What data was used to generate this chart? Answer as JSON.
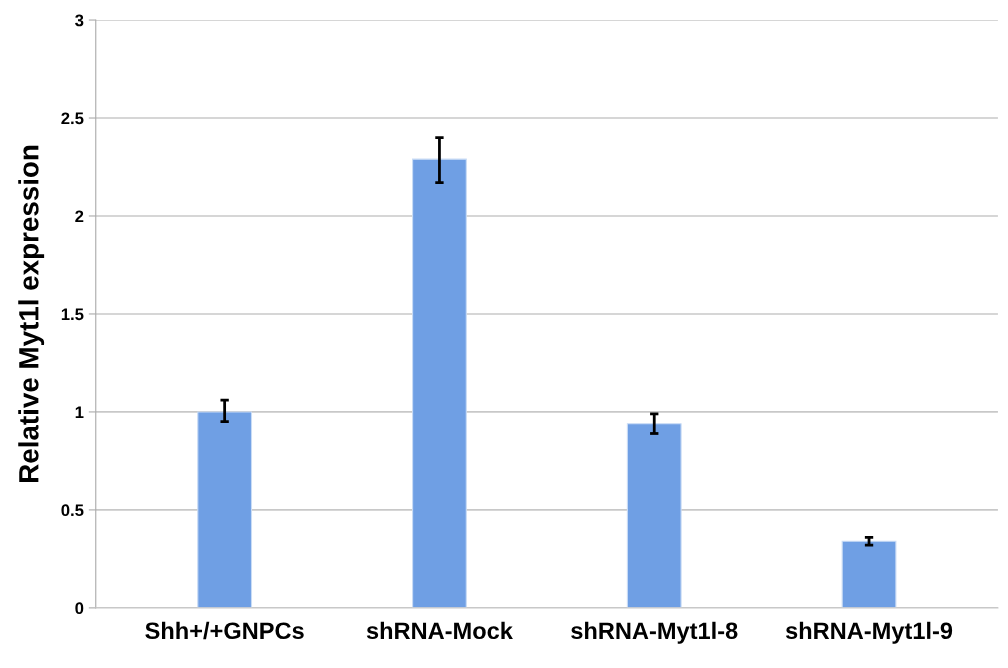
{
  "chart_data": {
    "type": "bar",
    "ylabel": "Relative Myt1l expression",
    "categories": [
      "Shh+/+GNPCs",
      "shRNA-Mock",
      "shRNA-Myt1l-8",
      "shRNA-Myt1l-9"
    ],
    "values": [
      1.0,
      2.29,
      0.94,
      0.34
    ],
    "errors": [
      [
        0.95,
        1.06
      ],
      [
        2.17,
        2.4
      ],
      [
        0.89,
        0.99
      ],
      [
        0.32,
        0.36
      ]
    ],
    "color": "#6f9fe4",
    "ylim": [
      0,
      3
    ],
    "yticks": [
      0,
      0.5,
      1,
      1.5,
      2,
      2.5,
      3
    ],
    "grid": "y"
  }
}
